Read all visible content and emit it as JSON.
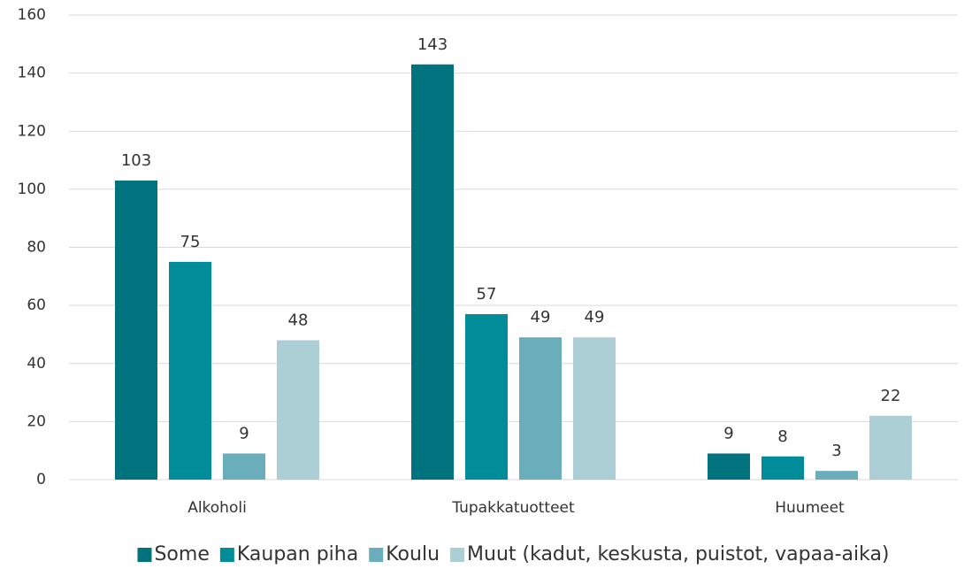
{
  "chart_data": {
    "type": "bar",
    "categories": [
      "Alkoholi",
      "Tupakkatuotteet",
      "Huumeet"
    ],
    "series": [
      {
        "name": "Some",
        "color": "#00737f",
        "values": [
          103,
          143,
          9
        ]
      },
      {
        "name": "Kaupan piha",
        "color": "#008c99",
        "values": [
          75,
          57,
          8
        ]
      },
      {
        "name": "Koulu",
        "color": "#6aaebb",
        "values": [
          9,
          49,
          3
        ]
      },
      {
        "name": "Muut (kadut, keskusta, puistot, vapaa-aika)",
        "color": "#abcfd5",
        "values": [
          48,
          49,
          22
        ]
      }
    ],
    "ylim": [
      0,
      160
    ],
    "yticks": [
      0,
      20,
      40,
      60,
      80,
      100,
      120,
      140,
      160
    ],
    "grid": true,
    "legend": "bottom"
  }
}
